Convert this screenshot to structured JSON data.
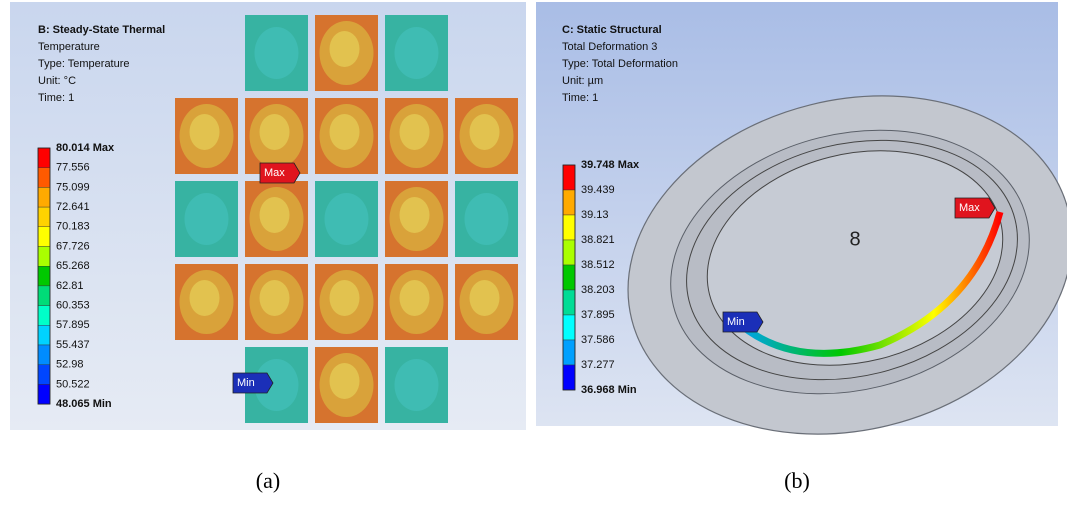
{
  "panels": [
    {
      "header": [
        "B: Steady-State Thermal",
        "Temperature",
        "Type: Temperature",
        "Unit: °C",
        "Time: 1"
      ],
      "legend": [
        "80.014 Max",
        "77.556",
        "75.099",
        "72.641",
        "70.183",
        "67.726",
        "65.268",
        "62.81",
        "60.353",
        "57.895",
        "55.437",
        "52.98",
        "50.522",
        "48.065 Min"
      ],
      "legend_colors": [
        "#ff0000",
        "#ff5a00",
        "#ffaa00",
        "#ffd200",
        "#ffff00",
        "#aaff00",
        "#00c800",
        "#00dc78",
        "#00ffc8",
        "#00d2ff",
        "#008cff",
        "#0046ff",
        "#0000ff"
      ],
      "probes": {
        "max": "Max",
        "min": "Min"
      },
      "caption": "(a)"
    },
    {
      "header": [
        "C: Static Structural",
        "Total Deformation 3",
        "Type: Total Deformation",
        "Unit: µm",
        "Time: 1"
      ],
      "legend": [
        "39.748 Max",
        "39.439",
        "39.13",
        "38.821",
        "38.512",
        "38.203",
        "37.895",
        "37.586",
        "37.277",
        "36.968 Min"
      ],
      "legend_colors": [
        "#ff0000",
        "#ffaa00",
        "#ffff00",
        "#aaff00",
        "#00c800",
        "#00dc96",
        "#00ffff",
        "#00a0ff",
        "#0000ff"
      ],
      "probes": {
        "max": "Max",
        "min": "Min"
      },
      "symbol": "8",
      "caption": "(b)"
    }
  ]
}
